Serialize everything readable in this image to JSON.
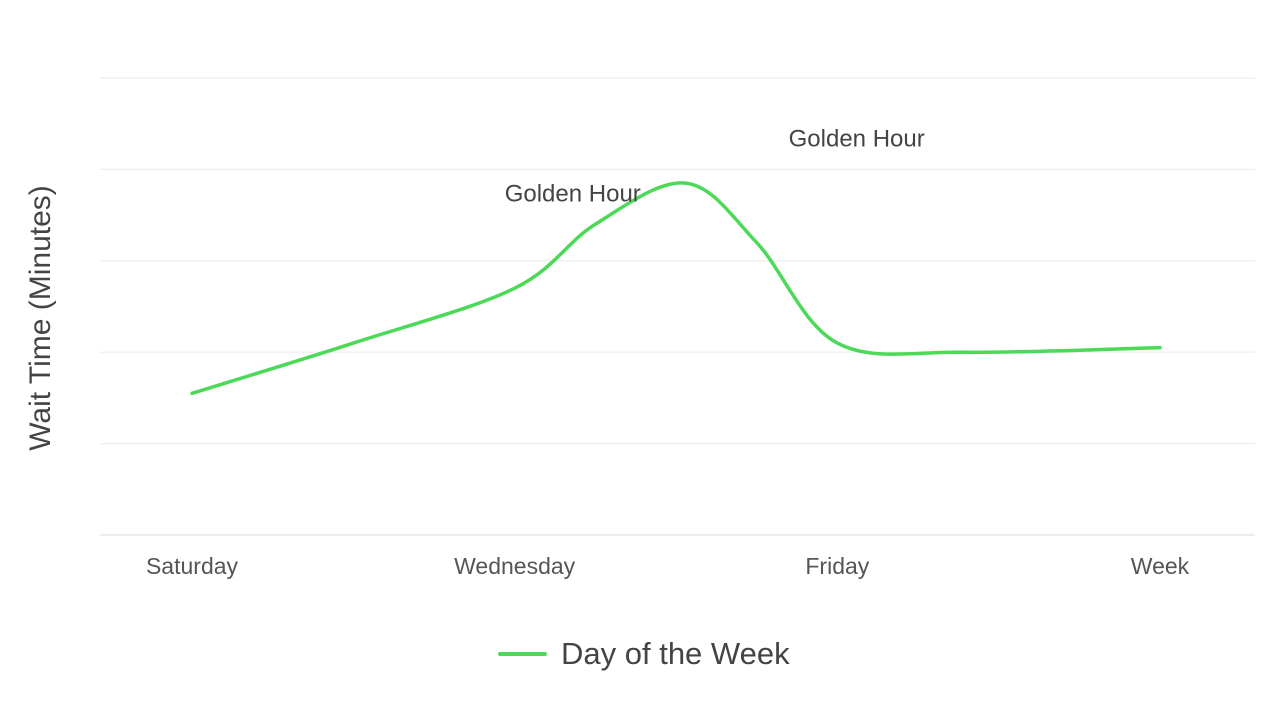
{
  "chart_data": {
    "type": "line",
    "title": "",
    "ylabel": "Wait Time (Minutes)",
    "xlabel": "",
    "categories": [
      "Saturday",
      "Wednesday",
      "Friday",
      "Week"
    ],
    "ylim": [
      0,
      50
    ],
    "grid": true,
    "legend_position": "bottom-center",
    "series": [
      {
        "name": "Day of the Week",
        "color": "#4cd957",
        "x": [
          0,
          0.5,
          1.0,
          1.25,
          1.53,
          1.75,
          2.0,
          2.4,
          3.0
        ],
        "y": [
          15.5,
          21,
          27,
          34,
          38.5,
          32,
          21,
          20,
          20.5
        ]
      }
    ],
    "annotations": [
      {
        "text": "Golden Hour",
        "x": 1.18,
        "y": 36.5
      },
      {
        "text": "Golden Hour",
        "x": 2.06,
        "y": 42.5
      }
    ]
  }
}
